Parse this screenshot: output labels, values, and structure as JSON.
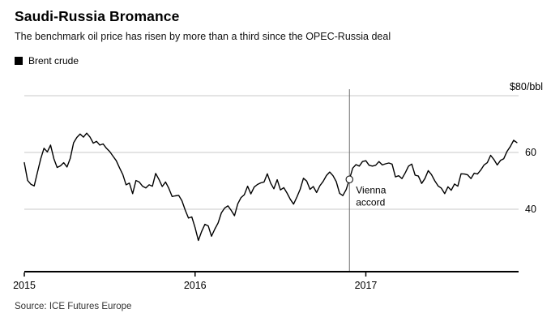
{
  "chart_data": {
    "type": "line",
    "title": "Saudi-Russia Bromance",
    "subtitle": "The benchmark oil price has risen by more than a third since the OPEC-Russia deal",
    "source": "Source: ICE Futures Europe",
    "legend_position": "top-left",
    "grid": true,
    "grid_color": "#c9c9c9",
    "axis_color": "#000000",
    "annotation_line_color": "#6e6e6e",
    "xlim": [
      2015.0,
      2017.885
    ],
    "ylim": [
      18,
      80
    ],
    "yticks": [
      {
        "value": 40,
        "label": "40"
      },
      {
        "value": 60,
        "label": "60"
      },
      {
        "value": 80,
        "label": "$80/bbl"
      }
    ],
    "xticks": [
      {
        "value": 2015,
        "label": "2015"
      },
      {
        "value": 2016,
        "label": "2016"
      },
      {
        "value": 2017,
        "label": "2017"
      }
    ],
    "annotation": {
      "label_line1": "Vienna",
      "label_line2": "accord",
      "x": 2016.904,
      "y": 50.5
    },
    "series": [
      {
        "name": "Brent crude",
        "color": "#000000",
        "x_start": 2015.0,
        "x_step_years": 0.0192308,
        "values": [
          56.4,
          50.1,
          48.8,
          48.2,
          53.0,
          57.8,
          61.5,
          60.2,
          62.6,
          57.8,
          54.7,
          55.3,
          56.4,
          54.9,
          57.9,
          63.4,
          65.3,
          66.5,
          65.4,
          66.8,
          65.4,
          63.3,
          63.9,
          62.6,
          63.0,
          61.5,
          60.3,
          58.7,
          57.1,
          54.6,
          52.2,
          48.6,
          49.2,
          45.5,
          50.1,
          49.6,
          48.1,
          47.5,
          48.6,
          48.1,
          52.6,
          50.5,
          48.0,
          49.6,
          47.4,
          44.5,
          44.7,
          44.9,
          43.0,
          39.7,
          36.9,
          37.3,
          33.6,
          29.0,
          32.2,
          34.7,
          34.1,
          30.5,
          33.0,
          35.1,
          38.7,
          40.4,
          41.2,
          39.6,
          37.7,
          41.9,
          44.1,
          45.1,
          48.1,
          45.4,
          47.8,
          48.7,
          49.3,
          49.6,
          52.5,
          49.2,
          47.2,
          50.4,
          46.8,
          47.6,
          45.7,
          43.5,
          41.8,
          44.3,
          47.0,
          50.9,
          49.9,
          47.0,
          48.0,
          45.9,
          48.3,
          49.8,
          51.9,
          53.1,
          51.8,
          49.7,
          45.6,
          44.8,
          46.9,
          50.5,
          54.5,
          55.7,
          55.2,
          56.8,
          57.1,
          55.5,
          55.2,
          55.5,
          56.8,
          55.6,
          56.0,
          56.3,
          55.9,
          51.4,
          51.8,
          50.8,
          52.8,
          55.2,
          55.9,
          52.0,
          51.7,
          49.1,
          50.8,
          53.6,
          52.2,
          50.0,
          48.2,
          47.4,
          45.5,
          47.9,
          46.7,
          48.9,
          48.1,
          52.5,
          52.4,
          52.1,
          50.8,
          52.7,
          52.4,
          53.8,
          55.6,
          56.4,
          59.0,
          57.5,
          55.6,
          57.2,
          57.8,
          60.4,
          62.1,
          64.3,
          63.5
        ]
      }
    ]
  }
}
